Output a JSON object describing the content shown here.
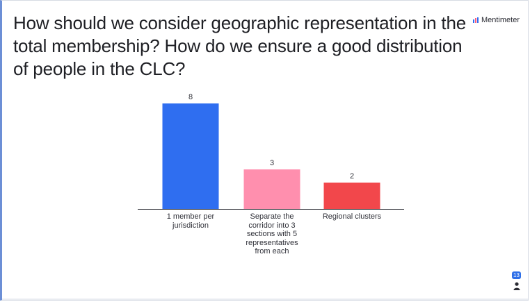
{
  "question": "How should we consider geographic representation in the total membership? How do we ensure a good distribution of people in the CLC?",
  "brand": {
    "name": "Mentimeter",
    "icon": "mentimeter-logo-icon"
  },
  "participants": {
    "count": "13",
    "icon": "person-icon"
  },
  "colors": {
    "blue": "#2f6ef0",
    "pink": "#ff8fae",
    "red": "#f2474b"
  },
  "chart_data": {
    "type": "bar",
    "categories": [
      "1 member per jurisdiction",
      "Separate the corridor into 3 sections with 5 representatives from each",
      "Regional clusters"
    ],
    "values": [
      8,
      3,
      2
    ],
    "title": "",
    "xlabel": "",
    "ylabel": "",
    "ylim": [
      0,
      8
    ],
    "grid": false,
    "bar_colors": [
      "#2f6ef0",
      "#ff8fae",
      "#f2474b"
    ]
  }
}
